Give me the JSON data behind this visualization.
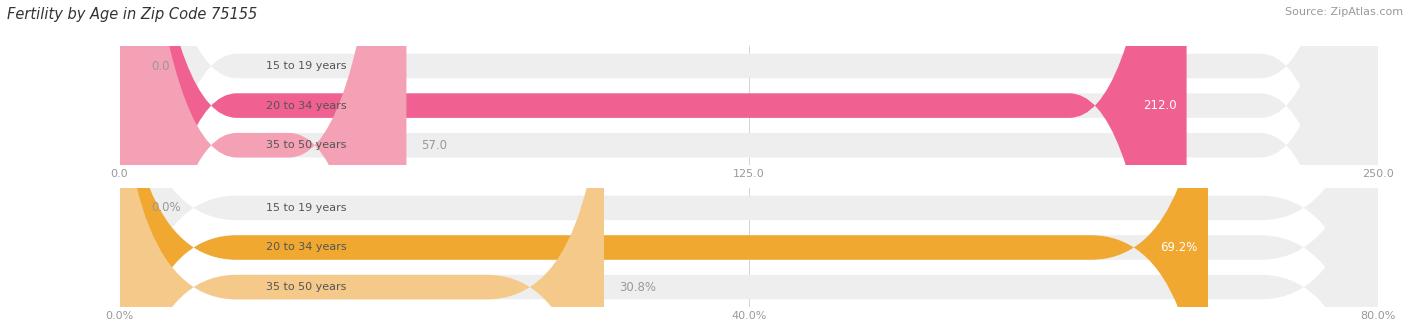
{
  "title": "Fertility by Age in Zip Code 75155",
  "source": "Source: ZipAtlas.com",
  "top_chart": {
    "categories": [
      "15 to 19 years",
      "20 to 34 years",
      "35 to 50 years"
    ],
    "values": [
      0.0,
      212.0,
      57.0
    ],
    "xlim": [
      0,
      250
    ],
    "xticks": [
      0.0,
      125.0,
      250.0
    ],
    "xtick_labels": [
      "0.0",
      "125.0",
      "250.0"
    ],
    "bar_colors": [
      "#f4a0b5",
      "#f06090",
      "#f4a0b5"
    ],
    "bar_bg_color": "#eeeeee",
    "label_color_inside": "#ffffff",
    "label_color_outside": "#999999"
  },
  "bottom_chart": {
    "categories": [
      "15 to 19 years",
      "20 to 34 years",
      "35 to 50 years"
    ],
    "values": [
      0.0,
      69.2,
      30.8
    ],
    "xlim": [
      0,
      80
    ],
    "xticks": [
      0.0,
      40.0,
      80.0
    ],
    "xtick_labels": [
      "0.0%",
      "40.0%",
      "80.0%"
    ],
    "bar_colors": [
      "#f5c98a",
      "#f0a830",
      "#f5c98a"
    ],
    "bar_bg_color": "#eeeeee",
    "label_color_inside": "#ffffff",
    "label_color_outside": "#999999"
  },
  "bg_color": "#ffffff",
  "title_fontsize": 10.5,
  "source_fontsize": 8,
  "label_fontsize": 8.5,
  "tick_fontsize": 8,
  "category_fontsize": 8,
  "bar_height": 0.62
}
